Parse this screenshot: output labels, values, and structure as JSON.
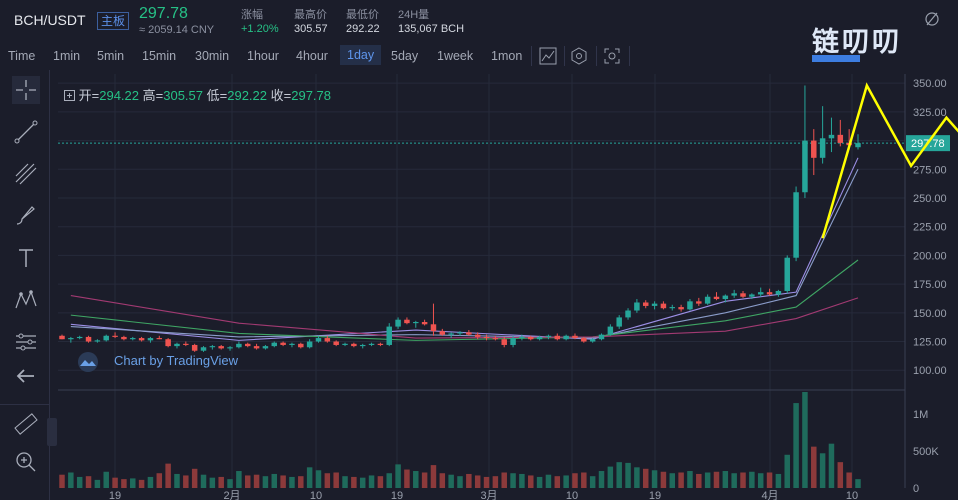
{
  "header": {
    "pair": "BCH/USDT",
    "badge": "主板",
    "price": "297.78",
    "cny": "≈ 2059.14 CNY",
    "stats": [
      {
        "label": "涨幅",
        "value": "+1.20%"
      },
      {
        "label": "最高价",
        "value": "305.57"
      },
      {
        "label": "最低价",
        "value": "292.22"
      },
      {
        "label": "24H量",
        "value": "135,067 BCH"
      }
    ]
  },
  "toolbar": {
    "intervals": [
      "Time",
      "1min",
      "5min",
      "15min",
      "30min",
      "1hour",
      "4hour",
      "1day",
      "5day",
      "1week",
      "1mon"
    ],
    "active": "1day"
  },
  "watermark": {
    "text": "链叨叨"
  },
  "ohlc": {
    "open_label": "开",
    "open": "294.22",
    "high_label": "高",
    "high": "305.57",
    "low_label": "低",
    "low": "292.22",
    "close_label": "收",
    "close": "297.78"
  },
  "attribution": "Chart by TradingView",
  "colors": {
    "up": "#26a69a",
    "down": "#ef5350",
    "background": "#1b1d2a",
    "annotation": "#ffff00",
    "price_line": "#26a69a"
  },
  "chart_data": [
    {
      "type": "candlestick",
      "title": "BCH/USDT 1day",
      "price_axis": {
        "ticks": [
          "350.00",
          "325.00",
          "300.00",
          "275.00",
          "250.00",
          "225.00",
          "200.00",
          "175.00",
          "150.00",
          "125.00",
          "100.00"
        ],
        "ylim": [
          88,
          358
        ]
      },
      "x_ticks": [
        "19",
        "2月",
        "10",
        "19",
        "3月",
        "10",
        "19",
        "4月",
        "10"
      ],
      "last_price": "297.78",
      "candles": [
        [
          130,
          131,
          127,
          127
        ],
        [
          127,
          129,
          124,
          128
        ],
        [
          128,
          130,
          127,
          129
        ],
        [
          129,
          130,
          124,
          125
        ],
        [
          125,
          127,
          124,
          126
        ],
        [
          126,
          131,
          125,
          130
        ],
        [
          130,
          133,
          128,
          129
        ],
        [
          129,
          130,
          126,
          127
        ],
        [
          127,
          129,
          126,
          128
        ],
        [
          128,
          129,
          125,
          126
        ],
        [
          126,
          129,
          124,
          128
        ],
        [
          128,
          130,
          127,
          127
        ],
        [
          127,
          128,
          120,
          121
        ],
        [
          121,
          124,
          119,
          123
        ],
        [
          123,
          125,
          121,
          122
        ],
        [
          122,
          123,
          116,
          117
        ],
        [
          117,
          121,
          116,
          120
        ],
        [
          120,
          122,
          118,
          121
        ],
        [
          121,
          122,
          118,
          119
        ],
        [
          119,
          121,
          117,
          120
        ],
        [
          120,
          125,
          119,
          123
        ],
        [
          123,
          124,
          120,
          121
        ],
        [
          121,
          123,
          118,
          119
        ],
        [
          119,
          122,
          118,
          121
        ],
        [
          121,
          125,
          120,
          124
        ],
        [
          124,
          125,
          121,
          122
        ],
        [
          122,
          124,
          120,
          123
        ],
        [
          123,
          124,
          119,
          120
        ],
        [
          120,
          127,
          119,
          125
        ],
        [
          125,
          130,
          124,
          128
        ],
        [
          128,
          130,
          124,
          125
        ],
        [
          125,
          126,
          121,
          122
        ],
        [
          122,
          124,
          121,
          123
        ],
        [
          123,
          124,
          120,
          121
        ],
        [
          121,
          123,
          119,
          122
        ],
        [
          122,
          124,
          121,
          123
        ],
        [
          123,
          124,
          121,
          122
        ],
        [
          122,
          141,
          121,
          138
        ],
        [
          138,
          146,
          136,
          144
        ],
        [
          144,
          146,
          140,
          141
        ],
        [
          141,
          143,
          137,
          142
        ],
        [
          142,
          144,
          139,
          140
        ],
        [
          140,
          158,
          130,
          134
        ],
        [
          134,
          136,
          130,
          131
        ],
        [
          131,
          133,
          128,
          132
        ],
        [
          132,
          134,
          130,
          133
        ],
        [
          133,
          135,
          130,
          131
        ],
        [
          131,
          133,
          127,
          129
        ],
        [
          129,
          131,
          126,
          128
        ],
        [
          128,
          130,
          126,
          127
        ],
        [
          127,
          129,
          120,
          122
        ],
        [
          122,
          130,
          120,
          128
        ],
        [
          128,
          131,
          126,
          129
        ],
        [
          129,
          130,
          126,
          127
        ],
        [
          127,
          130,
          126,
          129
        ],
        [
          129,
          131,
          127,
          130
        ],
        [
          130,
          132,
          126,
          127
        ],
        [
          127,
          131,
          126,
          130
        ],
        [
          130,
          132,
          127,
          128
        ],
        [
          128,
          129,
          124,
          125
        ],
        [
          125,
          128,
          124,
          127
        ],
        [
          127,
          132,
          126,
          131
        ],
        [
          131,
          140,
          130,
          138
        ],
        [
          138,
          148,
          136,
          146
        ],
        [
          146,
          154,
          144,
          152
        ],
        [
          152,
          162,
          150,
          159
        ],
        [
          159,
          161,
          154,
          156
        ],
        [
          156,
          160,
          153,
          158
        ],
        [
          158,
          160,
          153,
          154
        ],
        [
          154,
          157,
          152,
          155
        ],
        [
          155,
          157,
          151,
          153
        ],
        [
          153,
          162,
          152,
          160
        ],
        [
          160,
          163,
          156,
          158
        ],
        [
          158,
          166,
          157,
          164
        ],
        [
          164,
          168,
          161,
          162
        ],
        [
          162,
          166,
          159,
          165
        ],
        [
          165,
          170,
          163,
          167
        ],
        [
          167,
          169,
          163,
          164
        ],
        [
          164,
          167,
          162,
          166
        ],
        [
          166,
          172,
          164,
          168
        ],
        [
          168,
          171,
          165,
          166
        ],
        [
          166,
          170,
          164,
          169
        ],
        [
          169,
          200,
          167,
          198
        ],
        [
          198,
          260,
          195,
          255
        ],
        [
          255,
          348,
          250,
          300
        ],
        [
          300,
          310,
          270,
          285
        ],
        [
          285,
          330,
          280,
          302
        ],
        [
          302,
          320,
          290,
          305
        ],
        [
          305,
          318,
          295,
          298
        ],
        [
          298,
          310,
          292,
          296
        ],
        [
          294.22,
          305.57,
          292.22,
          297.78
        ]
      ],
      "moving_averages": [
        {
          "color": "#9c8fe6",
          "ends": [
            [
              1,
              140
            ],
            [
              20,
              126
            ],
            [
              40,
              135
            ],
            [
              60,
              127
            ],
            [
              75,
              160
            ],
            [
              83,
              168
            ],
            [
              90,
              285
            ]
          ]
        },
        {
          "color": "#8a9cc9",
          "ends": [
            [
              1,
              138
            ],
            [
              20,
              129
            ],
            [
              40,
              131
            ],
            [
              60,
              128
            ],
            [
              75,
              150
            ],
            [
              83,
              165
            ],
            [
              90,
              275
            ]
          ]
        },
        {
          "color": "#3fa564",
          "ends": [
            [
              1,
              148
            ],
            [
              20,
              132
            ],
            [
              40,
              126
            ],
            [
              60,
              129
            ],
            [
              75,
              143
            ],
            [
              83,
              155
            ],
            [
              90,
              196
            ]
          ]
        },
        {
          "color": "#a23a72",
          "ends": [
            [
              1,
              165
            ],
            [
              20,
              141
            ],
            [
              40,
              128
            ],
            [
              60,
              129
            ],
            [
              75,
              134
            ],
            [
              83,
              145
            ],
            [
              90,
              163
            ]
          ]
        }
      ]
    },
    {
      "type": "bar",
      "title": "Volume",
      "axis": {
        "ticks": [
          "1M",
          "500K",
          "0"
        ],
        "ylim": [
          0,
          1300000
        ]
      },
      "values": [
        180000,
        210000,
        150000,
        160000,
        110000,
        220000,
        140000,
        120000,
        130000,
        110000,
        150000,
        200000,
        330000,
        190000,
        170000,
        260000,
        180000,
        140000,
        150000,
        120000,
        230000,
        170000,
        180000,
        160000,
        190000,
        170000,
        150000,
        160000,
        280000,
        240000,
        200000,
        210000,
        160000,
        150000,
        140000,
        170000,
        160000,
        200000,
        320000,
        250000,
        230000,
        210000,
        310000,
        200000,
        180000,
        160000,
        190000,
        170000,
        150000,
        160000,
        210000,
        200000,
        190000,
        170000,
        150000,
        180000,
        160000,
        170000,
        200000,
        210000,
        160000,
        230000,
        290000,
        350000,
        340000,
        280000,
        260000,
        240000,
        220000,
        200000,
        210000,
        230000,
        190000,
        210000,
        220000,
        230000,
        200000,
        210000,
        220000,
        200000,
        210000,
        190000,
        450000,
        1150000,
        1300000,
        560000,
        470000,
        600000,
        350000,
        210000,
        120000
      ]
    }
  ]
}
